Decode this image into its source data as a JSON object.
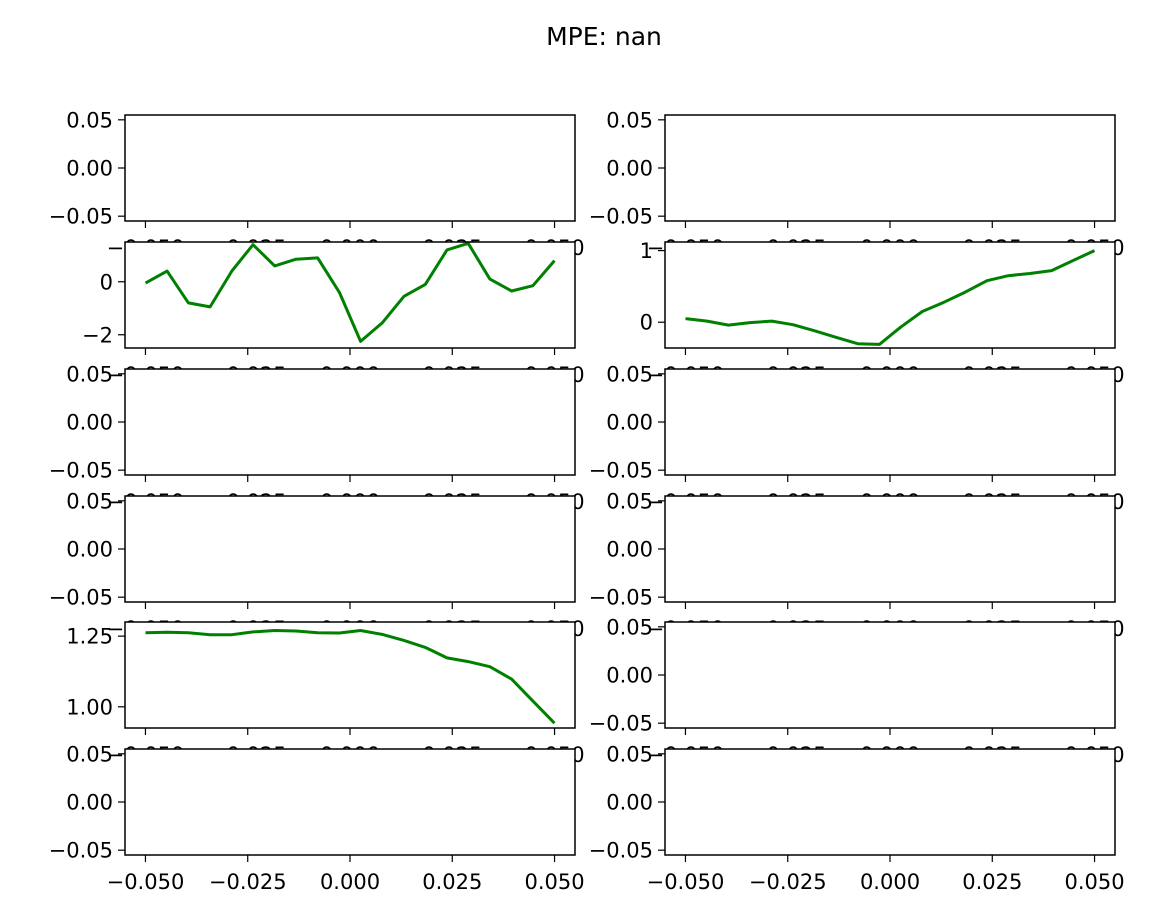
{
  "figure": {
    "suptitle": "MPE: nan"
  },
  "chart_data": [
    {
      "type": "line",
      "row": 1,
      "col": 1,
      "xticks": [
        "−0.050",
        "−0.025",
        "0.000",
        "0.025",
        "0.050"
      ],
      "yticks": [
        {
          "v": -0.05,
          "label": "−0.05"
        },
        {
          "v": 0.0,
          "label": "0.00"
        },
        {
          "v": 0.05,
          "label": "0.05"
        }
      ],
      "xlim": [
        -0.055,
        0.055
      ],
      "ylim": [
        -0.055,
        0.055
      ],
      "series": []
    },
    {
      "type": "line",
      "row": 1,
      "col": 2,
      "xticks": [
        "−0.050",
        "−0.025",
        "0.000",
        "0.025",
        "0.050"
      ],
      "yticks": [
        {
          "v": -0.05,
          "label": "−0.05"
        },
        {
          "v": 0.0,
          "label": "0.00"
        },
        {
          "v": 0.05,
          "label": "0.05"
        }
      ],
      "xlim": [
        -0.055,
        0.055
      ],
      "ylim": [
        -0.055,
        0.055
      ],
      "series": []
    },
    {
      "type": "line",
      "row": 2,
      "col": 1,
      "xticks": [
        "−0.050",
        "−0.025",
        "0.000",
        "0.025",
        "0.050"
      ],
      "yticks": [
        {
          "v": -2,
          "label": "−2"
        },
        {
          "v": 0,
          "label": "0"
        }
      ],
      "xlim": [
        -0.055,
        0.055
      ],
      "ylim": [
        -2.5,
        1.5
      ],
      "series": [
        {
          "color": "#008000",
          "x": [
            -0.05,
            -0.0447,
            -0.0395,
            -0.0342,
            -0.0289,
            -0.0237,
            -0.0184,
            -0.0132,
            -0.0079,
            -0.0026,
            0.0026,
            0.0079,
            0.0132,
            0.0184,
            0.0237,
            0.0289,
            0.0342,
            0.0395,
            0.0447,
            0.05
          ],
          "y": [
            -0.05,
            0.4,
            -0.8,
            -0.95,
            0.4,
            1.4,
            0.6,
            0.85,
            0.9,
            -0.4,
            -2.25,
            -1.55,
            -0.55,
            -0.1,
            1.2,
            1.45,
            0.1,
            -0.35,
            -0.15,
            0.8
          ]
        }
      ]
    },
    {
      "type": "line",
      "row": 2,
      "col": 2,
      "xticks": [
        "−0.050",
        "−0.025",
        "0.000",
        "0.025",
        "0.050"
      ],
      "yticks": [
        {
          "v": 0,
          "label": "0"
        },
        {
          "v": 1,
          "label": "1"
        }
      ],
      "xlim": [
        -0.055,
        0.055
      ],
      "ylim": [
        -0.36,
        1.12
      ],
      "series": [
        {
          "color": "#008000",
          "x": [
            -0.05,
            -0.0447,
            -0.0395,
            -0.0342,
            -0.0289,
            -0.0237,
            -0.0184,
            -0.0132,
            -0.0079,
            -0.0026,
            0.0026,
            0.0079,
            0.0132,
            0.0184,
            0.0237,
            0.0289,
            0.0342,
            0.0395,
            0.0447,
            0.05
          ],
          "y": [
            0.05,
            0.015,
            -0.04,
            -0.005,
            0.015,
            -0.035,
            -0.12,
            -0.21,
            -0.3,
            -0.31,
            -0.07,
            0.15,
            0.28,
            0.42,
            0.58,
            0.65,
            0.68,
            0.72,
            0.86,
            1.0
          ]
        }
      ]
    },
    {
      "type": "line",
      "row": 3,
      "col": 1,
      "xticks": [
        "−0.050",
        "−0.025",
        "0.000",
        "0.025",
        "0.050"
      ],
      "yticks": [
        {
          "v": -0.05,
          "label": "−0.05"
        },
        {
          "v": 0.0,
          "label": "0.00"
        },
        {
          "v": 0.05,
          "label": "0.05"
        }
      ],
      "xlim": [
        -0.055,
        0.055
      ],
      "ylim": [
        -0.055,
        0.055
      ],
      "series": []
    },
    {
      "type": "line",
      "row": 3,
      "col": 2,
      "xticks": [
        "−0.050",
        "−0.025",
        "0.000",
        "0.025",
        "0.050"
      ],
      "yticks": [
        {
          "v": -0.05,
          "label": "−0.05"
        },
        {
          "v": 0.0,
          "label": "0.00"
        },
        {
          "v": 0.05,
          "label": "0.05"
        }
      ],
      "xlim": [
        -0.055,
        0.055
      ],
      "ylim": [
        -0.055,
        0.055
      ],
      "series": []
    },
    {
      "type": "line",
      "row": 4,
      "col": 1,
      "xticks": [
        "−0.050",
        "−0.025",
        "0.000",
        "0.025",
        "0.050"
      ],
      "yticks": [
        {
          "v": -0.05,
          "label": "−0.05"
        },
        {
          "v": 0.0,
          "label": "0.00"
        },
        {
          "v": 0.05,
          "label": "0.05"
        }
      ],
      "xlim": [
        -0.055,
        0.055
      ],
      "ylim": [
        -0.055,
        0.055
      ],
      "series": []
    },
    {
      "type": "line",
      "row": 4,
      "col": 2,
      "xticks": [
        "−0.050",
        "−0.025",
        "0.000",
        "0.025",
        "0.050"
      ],
      "yticks": [
        {
          "v": -0.05,
          "label": "−0.05"
        },
        {
          "v": 0.0,
          "label": "0.00"
        },
        {
          "v": 0.05,
          "label": "0.05"
        }
      ],
      "xlim": [
        -0.055,
        0.055
      ],
      "ylim": [
        -0.055,
        0.055
      ],
      "series": []
    },
    {
      "type": "line",
      "row": 5,
      "col": 1,
      "xticks": [
        "−0.050",
        "−0.025",
        "0.000",
        "0.025",
        "0.050"
      ],
      "yticks": [
        {
          "v": 1.0,
          "label": "1.00"
        },
        {
          "v": 1.25,
          "label": "1.25"
        }
      ],
      "xlim": [
        -0.055,
        0.055
      ],
      "ylim": [
        0.925,
        1.3
      ],
      "series": [
        {
          "color": "#008000",
          "x": [
            -0.05,
            -0.0447,
            -0.0395,
            -0.0342,
            -0.0289,
            -0.0237,
            -0.0184,
            -0.0132,
            -0.0079,
            -0.0026,
            0.0026,
            0.0079,
            0.0132,
            0.0184,
            0.0237,
            0.0289,
            0.0342,
            0.0395,
            0.0447,
            0.05
          ],
          "y": [
            1.262,
            1.264,
            1.262,
            1.255,
            1.255,
            1.265,
            1.27,
            1.268,
            1.262,
            1.261,
            1.27,
            1.256,
            1.235,
            1.21,
            1.173,
            1.16,
            1.142,
            1.098,
            1.02,
            0.942
          ]
        }
      ]
    },
    {
      "type": "line",
      "row": 5,
      "col": 2,
      "xticks": [
        "−0.050",
        "−0.025",
        "0.000",
        "0.025",
        "0.050"
      ],
      "yticks": [
        {
          "v": -0.05,
          "label": "−0.05"
        },
        {
          "v": 0.0,
          "label": "0.00"
        },
        {
          "v": 0.05,
          "label": "0.05"
        }
      ],
      "xlim": [
        -0.055,
        0.055
      ],
      "ylim": [
        -0.055,
        0.055
      ],
      "series": []
    },
    {
      "type": "line",
      "row": 6,
      "col": 1,
      "xticks": [
        "−0.050",
        "−0.025",
        "0.000",
        "0.025",
        "0.050"
      ],
      "yticks": [
        {
          "v": -0.05,
          "label": "−0.05"
        },
        {
          "v": 0.0,
          "label": "0.00"
        },
        {
          "v": 0.05,
          "label": "0.05"
        }
      ],
      "xlim": [
        -0.055,
        0.055
      ],
      "ylim": [
        -0.055,
        0.055
      ],
      "series": []
    },
    {
      "type": "line",
      "row": 6,
      "col": 2,
      "xticks": [
        "−0.050",
        "−0.025",
        "0.000",
        "0.025",
        "0.050"
      ],
      "yticks": [
        {
          "v": -0.05,
          "label": "−0.05"
        },
        {
          "v": 0.0,
          "label": "0.00"
        },
        {
          "v": 0.05,
          "label": "0.05"
        }
      ],
      "xlim": [
        -0.055,
        0.055
      ],
      "ylim": [
        -0.055,
        0.055
      ],
      "series": []
    }
  ]
}
